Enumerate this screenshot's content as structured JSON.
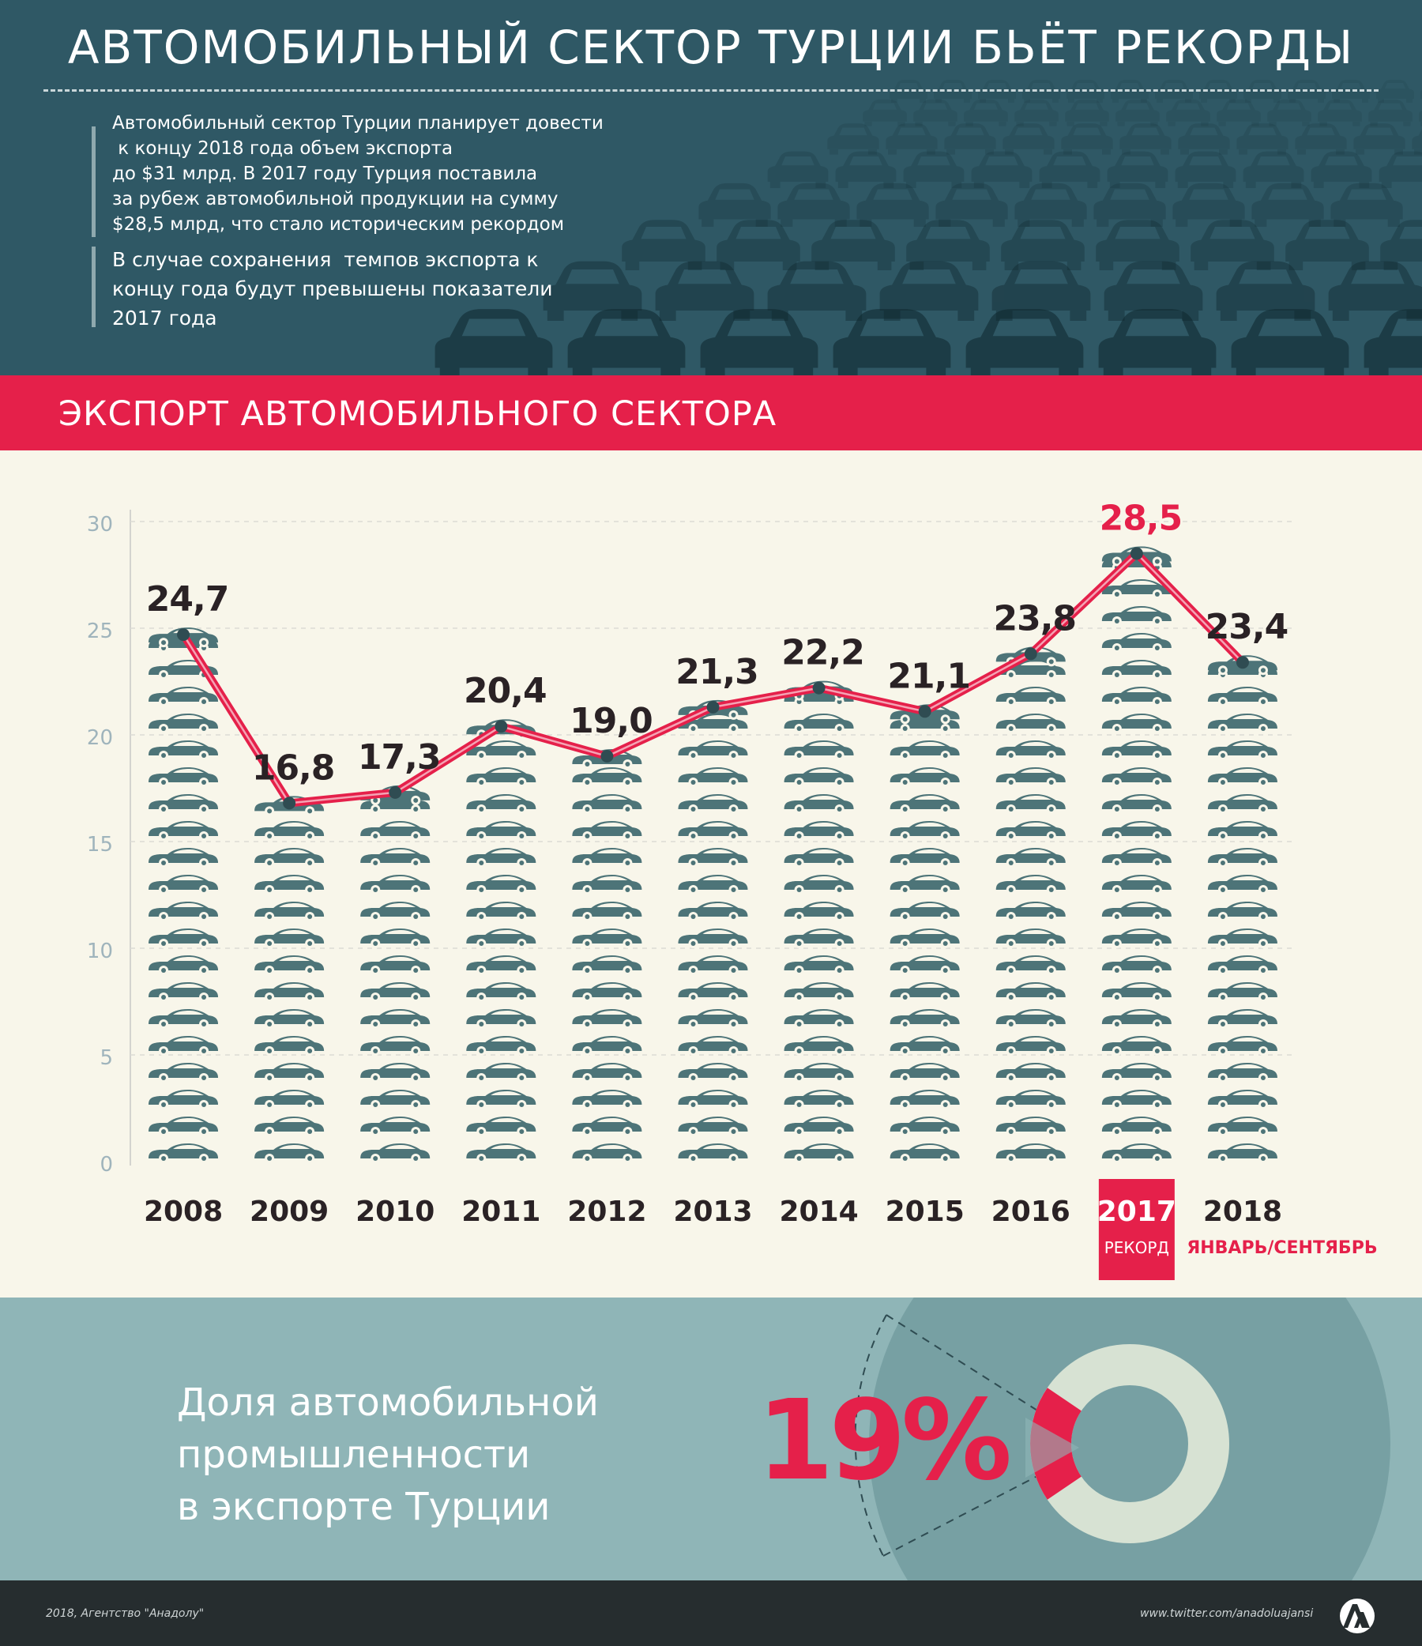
{
  "header": {
    "title": "АВТОМОБИЛЬНЫЙ СЕКТОР ТУРЦИИ БЬЁТ РЕКОРДЫ",
    "intro_1": [
      "Автомобильный сектор Турции планирует довести",
      " к концу 2018 года объем экспорта",
      "до $31 млрд. В 2017 году Турция поставила",
      "за рубеж автомобильной продукции на сумму",
      "$28,5 млрд, что стало историческим рекордом"
    ],
    "intro_2": [
      "В случае сохранения  темпов экспорта к",
      "концу года будут превышены показатели",
      "2017 года"
    ]
  },
  "section_title": "ЭКСПОРТ АВТОМОБИЛЬНОГО СЕКТОРА",
  "chart_data": {
    "type": "bar",
    "categories": [
      "2008",
      "2009",
      "2010",
      "2011",
      "2012",
      "2013",
      "2014",
      "2015",
      "2016",
      "2017",
      "2018"
    ],
    "values": [
      24.7,
      16.8,
      17.3,
      20.4,
      19.0,
      21.3,
      22.2,
      21.1,
      23.8,
      28.5,
      23.4
    ],
    "value_labels": [
      "24,7",
      "16,8",
      "17,3",
      "20,4",
      "19,0",
      "21,3",
      "22,2",
      "21,1",
      "23,8",
      "28,5",
      "23,4"
    ],
    "y_ticks": [
      0,
      5,
      10,
      15,
      20,
      25,
      30
    ],
    "ylim": [
      0,
      30
    ],
    "grid": true,
    "overlay": "line",
    "highlight": {
      "category": "2017",
      "label": "РЕКОРД"
    },
    "category_notes": {
      "2018": "ЯНВАРЬ/СЕНТЯБРЬ"
    }
  },
  "share": {
    "text": [
      "Доля автомобильной",
      "промышленности",
      "в экспорте Турции"
    ],
    "percent_label": "19%",
    "value": 19
  },
  "footer": {
    "left": "2018, Агентство \"Анадолу\"",
    "right": "www.twitter.com/anadoluajansi",
    "logo": "aa-logo-icon"
  },
  "colors": {
    "header_bg": "#2f5865",
    "accent_red": "#e5204a",
    "bar_car": "#4d7478",
    "background": "#f8f6ea",
    "bottom_bg": "#8fb5b7",
    "footer_bg": "#262d2f"
  }
}
